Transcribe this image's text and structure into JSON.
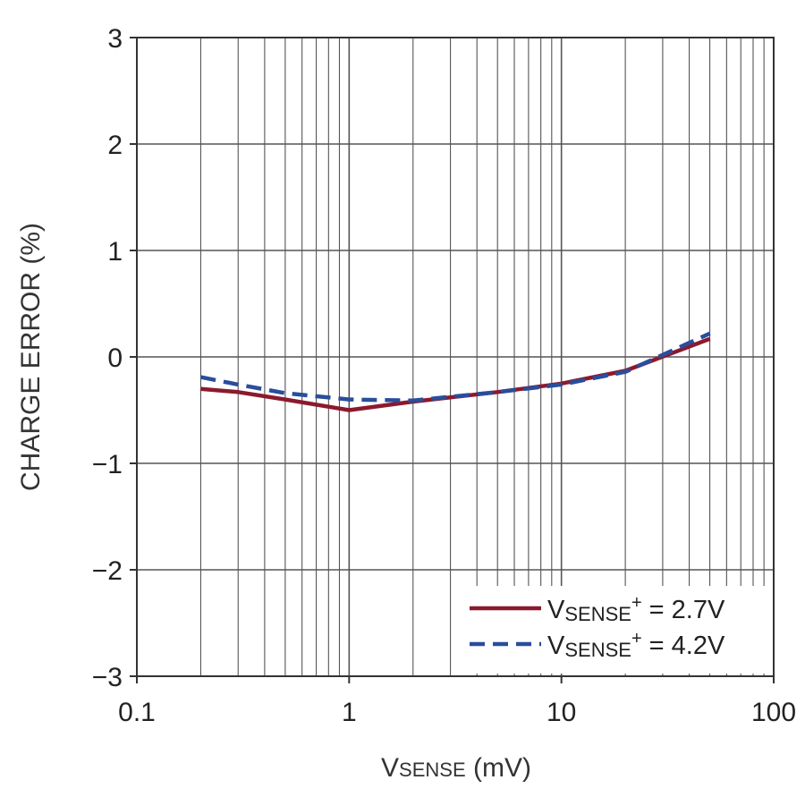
{
  "chart_data": {
    "type": "line",
    "x_scale": "log",
    "xlim": [
      0.1,
      100
    ],
    "ylim": [
      -3,
      3
    ],
    "grid": true,
    "legend_position": "bottom-right",
    "x_ticks": [
      {
        "value": 0.1,
        "label": "0.1"
      },
      {
        "value": 1,
        "label": "1"
      },
      {
        "value": 10,
        "label": "10"
      },
      {
        "value": 100,
        "label": "100"
      }
    ],
    "y_ticks": [
      {
        "value": 3,
        "label": "3"
      },
      {
        "value": 2,
        "label": "2"
      },
      {
        "value": 1,
        "label": "1"
      },
      {
        "value": 0,
        "label": "0"
      },
      {
        "value": -1,
        "label": "−1"
      },
      {
        "value": -2,
        "label": "−2"
      },
      {
        "value": -3,
        "label": "−3"
      }
    ],
    "xlabel": {
      "main": "V",
      "sub": "SENSE",
      "rest": " (mV)"
    },
    "ylabel": "CHARGE ERROR (%)",
    "series": [
      {
        "legend": {
          "main": "V",
          "sub": "SENSE",
          "sup": "+",
          "rest": " = 2.7V"
        },
        "color": "#8b1a2e",
        "style": "solid",
        "x": [
          0.2,
          0.3,
          0.5,
          1,
          2,
          5,
          10,
          20,
          50
        ],
        "y": [
          -0.3,
          -0.33,
          -0.4,
          -0.5,
          -0.42,
          -0.33,
          -0.25,
          -0.13,
          0.17
        ]
      },
      {
        "legend": {
          "main": "V",
          "sub": "SENSE",
          "sup": "+",
          "rest": " = 4.2V"
        },
        "color": "#2a4d9c",
        "style": "dashed",
        "x": [
          0.2,
          0.3,
          0.5,
          1,
          2,
          5,
          10,
          20,
          50
        ],
        "y": [
          -0.19,
          -0.26,
          -0.34,
          -0.4,
          -0.41,
          -0.33,
          -0.26,
          -0.14,
          0.22
        ]
      }
    ]
  }
}
